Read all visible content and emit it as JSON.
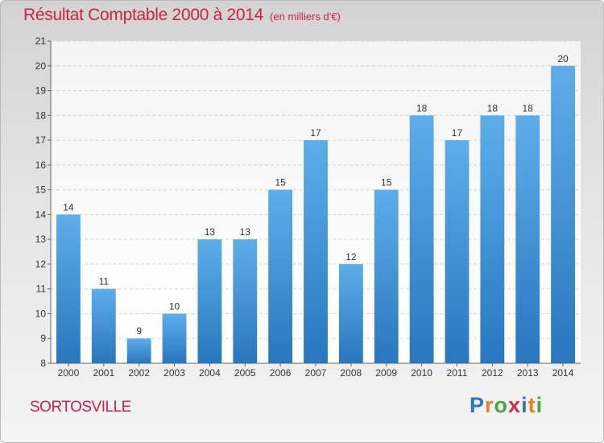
{
  "chart_data": {
    "type": "bar",
    "title": "Résultat Comptable 2000 à 2014",
    "subtitle": "(en milliers d'€)",
    "categories": [
      "2000",
      "2001",
      "2002",
      "2003",
      "2004",
      "2005",
      "2006",
      "2007",
      "2008",
      "2009",
      "2010",
      "2011",
      "2012",
      "2013",
      "2014"
    ],
    "values": [
      14,
      11,
      9,
      10,
      13,
      13,
      15,
      17,
      12,
      15,
      18,
      17,
      18,
      18,
      20
    ],
    "ylim": [
      8,
      21
    ],
    "yticks": [
      8,
      9,
      10,
      11,
      12,
      13,
      14,
      15,
      16,
      17,
      18,
      19,
      20,
      21
    ],
    "xlabel": "",
    "ylabel": "",
    "grid": true,
    "bar_color": "#3d8fd6"
  },
  "commune": "SORTOSVILLE",
  "logo": {
    "letters": [
      "P",
      "r",
      "o",
      "x",
      "i",
      "t",
      "i"
    ],
    "colors": [
      "#2e74c9",
      "#e6821e",
      "#45a83a",
      "#d92b4c",
      "#2e74c9",
      "#e6821e",
      "#45a83a"
    ]
  }
}
